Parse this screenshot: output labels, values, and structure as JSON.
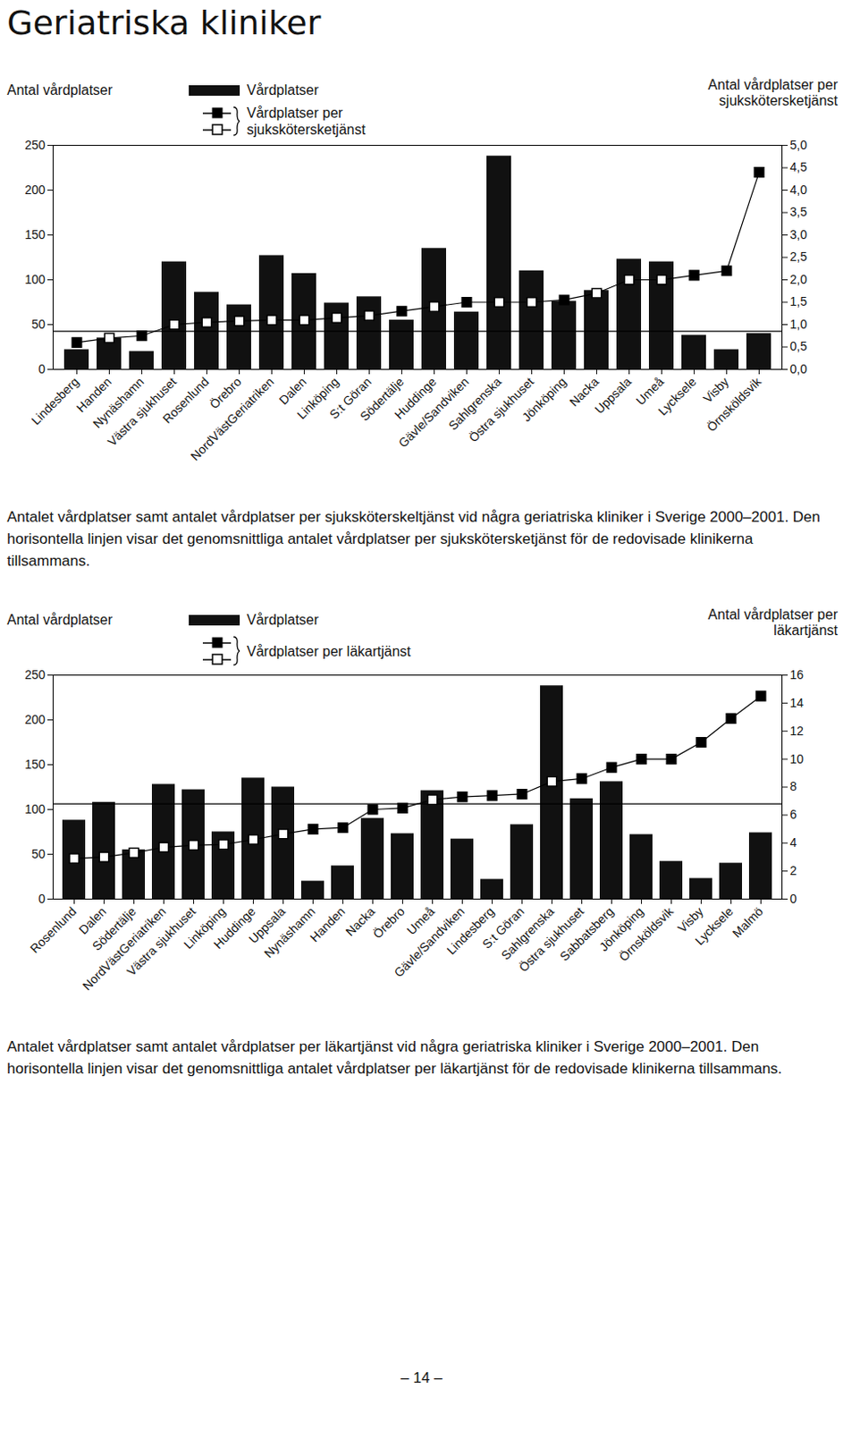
{
  "page_title": "Geriatriska kliniker",
  "page_number": "– 14 –",
  "chart_data": [
    {
      "type": "bar",
      "y_label": "Antal vårdplatser",
      "y2_label": "Antal vårdplatser per sjukskötersketjänst",
      "caption": "Antalet vårdplatser samt antalet vårdplatser per sjuksköterskeltjänst vid några geriatriska kliniker i Sverige 2000–2001. Den horisontella linjen visar det genomsnittliga antalet vårdplatser per sjukskötersketjänst för de redovisade klinikerna tillsammans.",
      "categories": [
        "Lindesberg",
        "Handen",
        "Nynäshamn",
        "Västra sjukhuset",
        "Rosenlund",
        "Örebro",
        "NordVästGeriatriken",
        "Dalen",
        "Linköping",
        "S:t Göran",
        "Södertälje",
        "Huddinge",
        "Gävle/Sandviken",
        "Sahlgrenska",
        "Östra sjukhuset",
        "Jönköping",
        "Nacka",
        "Uppsala",
        "Umeå",
        "Lycksele",
        "Visby",
        "Örnsköldsvik"
      ],
      "series": [
        {
          "name": "Vårdplatser",
          "type": "bar",
          "color": "#111111",
          "values": [
            22,
            35,
            20,
            120,
            86,
            72,
            127,
            107,
            74,
            81,
            55,
            135,
            64,
            238,
            110,
            76,
            88,
            123,
            120,
            38,
            22,
            40
          ]
        },
        {
          "name": "Vårdplatser per sjukskötersketjänst",
          "type": "line",
          "axis": "y2",
          "marker": "square",
          "color": "#000000",
          "values": [
            0.6,
            0.7,
            0.75,
            1.0,
            1.05,
            1.08,
            1.1,
            1.1,
            1.15,
            1.2,
            1.3,
            1.4,
            1.5,
            1.5,
            1.5,
            1.55,
            1.7,
            2.0,
            2.0,
            2.1,
            2.2,
            4.4
          ]
        }
      ],
      "average": 0.85,
      "ylim": [
        0,
        250
      ],
      "yticks": [
        0,
        50,
        100,
        150,
        200,
        250
      ],
      "y2lim": [
        0,
        5
      ],
      "y2ticks": [
        {
          "value": 0,
          "label": "0,0"
        },
        {
          "value": 0.5,
          "label": "0,5"
        },
        {
          "value": 1,
          "label": "1,0"
        },
        {
          "value": 1.5,
          "label": "1,5"
        },
        {
          "value": 2,
          "label": "2,0"
        },
        {
          "value": 2.5,
          "label": "2,5"
        },
        {
          "value": 3,
          "label": "3,0"
        },
        {
          "value": 3.5,
          "label": "3,5"
        },
        {
          "value": 4,
          "label": "4,0"
        },
        {
          "value": 4.5,
          "label": "4,5"
        },
        {
          "value": 5,
          "label": "5,0"
        }
      ],
      "grid": false,
      "legend": "top"
    },
    {
      "type": "bar",
      "y_label": "Antal vårdplatser",
      "y2_label": "Antal vårdplatser per läkartjänst",
      "caption": "Antalet vårdplatser samt antalet vårdplatser per läkartjänst vid några geriatriska kliniker i Sverige 2000–2001. Den horisontella linjen visar det genomsnittliga antalet vårdplatser per läkartjänst för de redovisade klinikerna tillsammans.",
      "categories": [
        "Rosenlund",
        "Dalen",
        "Södertälje",
        "NordVästGeriatriken",
        "Västra sjukhuset",
        "Linköping",
        "Huddinge",
        "Uppsala",
        "Nynäshamn",
        "Handen",
        "Nacka",
        "Örebro",
        "Umeå",
        "Gävle/Sandviken",
        "Lindesberg",
        "S:t Göran",
        "Sahlgrenska",
        "Östra sjukhuset",
        "Sabbatsberg",
        "Jönköping",
        "Örnsköldsvik",
        "Visby",
        "Lycksele",
        "Malmö"
      ],
      "series": [
        {
          "name": "Vårdplatser",
          "type": "bar",
          "color": "#111111",
          "values": [
            88,
            108,
            55,
            128,
            122,
            75,
            135,
            125,
            20,
            37,
            90,
            73,
            121,
            67,
            22,
            83,
            238,
            112,
            131,
            72,
            42,
            23,
            40,
            74
          ]
        },
        {
          "name": "Vårdplatser per läkartjänst",
          "type": "line",
          "axis": "y2",
          "marker": "square",
          "color": "#000000",
          "values": [
            2.9,
            3.0,
            3.3,
            3.7,
            3.85,
            3.9,
            4.25,
            4.65,
            5.0,
            5.1,
            6.4,
            6.5,
            7.1,
            7.3,
            7.4,
            7.5,
            8.4,
            8.6,
            9.4,
            10.0,
            10.0,
            11.2,
            12.9,
            14.5
          ]
        }
      ],
      "average": 6.8,
      "ylim": [
        0,
        250
      ],
      "yticks": [
        0,
        50,
        100,
        150,
        200,
        250
      ],
      "y2lim": [
        0,
        16
      ],
      "y2ticks": [
        0,
        2,
        4,
        6,
        8,
        10,
        12,
        14,
        16
      ],
      "grid": false,
      "legend": "top"
    }
  ]
}
